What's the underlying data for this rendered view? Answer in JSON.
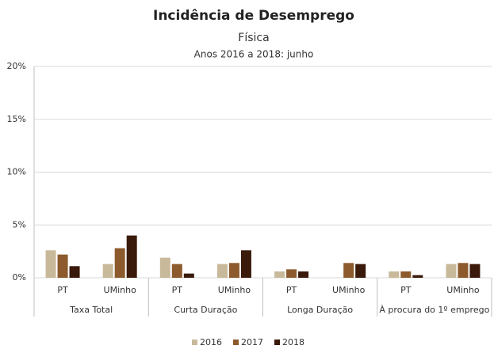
{
  "chart_data": {
    "type": "bar",
    "title": "Incidência de Desemprego",
    "subtitle": "Física",
    "subtitle2": "Anos 2016 a 2018: junho",
    "categories": [
      "PT",
      "UMinho",
      "PT",
      "UMinho",
      "PT",
      "UMinho",
      "PT",
      "UMinho"
    ],
    "groups": [
      "Taxa Total",
      "Curta Duração",
      "Longa Duração",
      "À procura do 1º emprego"
    ],
    "series": [
      {
        "name": "2016",
        "color": "#c9b99b",
        "values": [
          2.6,
          1.3,
          1.9,
          1.3,
          0.6,
          null,
          0.6,
          1.3
        ]
      },
      {
        "name": "2017",
        "color": "#8c5a2c",
        "values": [
          2.2,
          2.8,
          1.3,
          1.4,
          0.8,
          1.4,
          0.6,
          1.4
        ]
      },
      {
        "name": "2018",
        "color": "#3a1a0b",
        "values": [
          1.1,
          4.0,
          0.4,
          2.6,
          0.6,
          1.3,
          0.25,
          1.3
        ]
      }
    ],
    "ylim": [
      0,
      20
    ],
    "yticks": [
      {
        "value": 0,
        "label": "0%"
      },
      {
        "value": 5,
        "label": "5%"
      },
      {
        "value": 10,
        "label": "10%"
      },
      {
        "value": 15,
        "label": "15%"
      },
      {
        "value": 20,
        "label": "20%"
      }
    ],
    "grid": true,
    "legend": "bottom"
  }
}
